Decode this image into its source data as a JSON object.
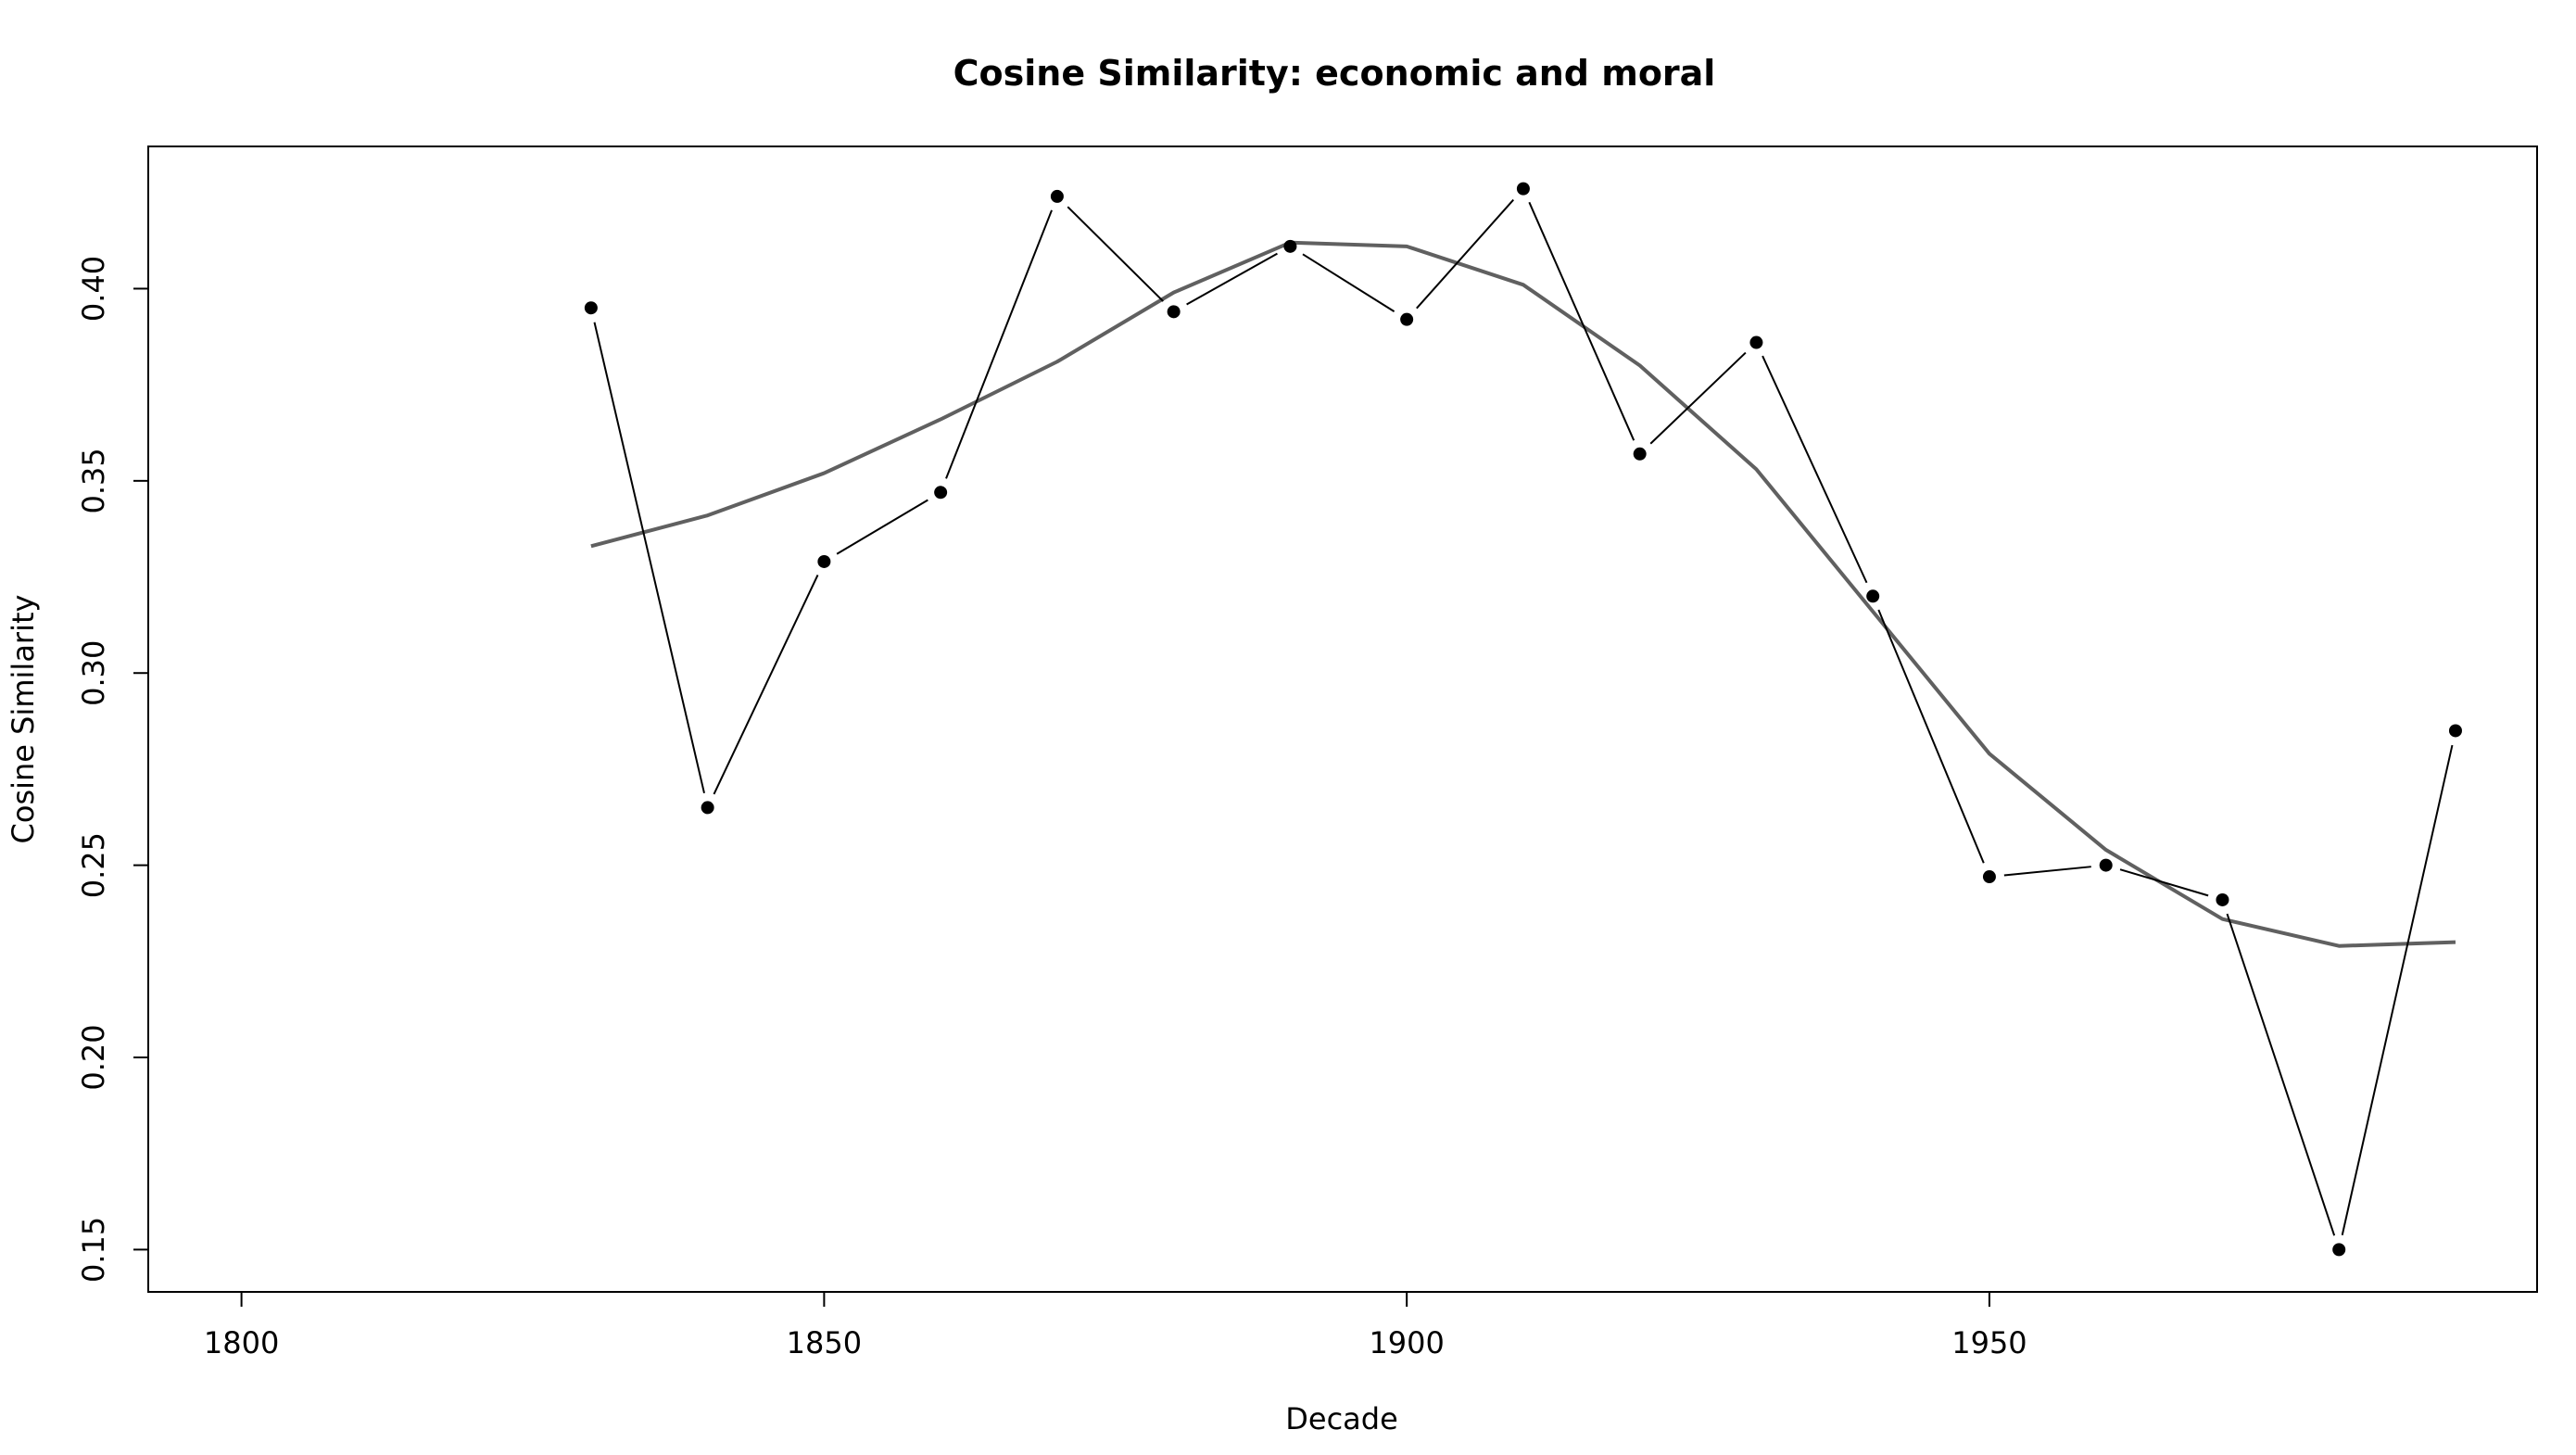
{
  "chart_data": {
    "type": "line",
    "title": "Cosine Similarity: economic and moral",
    "xlabel": "Decade",
    "ylabel": "Cosine Similarity",
    "xlim": [
      1792,
      1997
    ],
    "ylim": [
      0.139,
      0.437
    ],
    "x_ticks": [
      1800,
      1850,
      1900,
      1950
    ],
    "y_ticks": [
      0.15,
      0.2,
      0.25,
      0.3,
      0.35,
      0.4
    ],
    "y_tick_labels": [
      "0.15",
      "0.20",
      "0.25",
      "0.30",
      "0.35",
      "0.40"
    ],
    "grid": false,
    "series": [
      {
        "style": "points-and-lines",
        "color": "#000000",
        "x": [
          1830,
          1840,
          1850,
          1860,
          1870,
          1880,
          1890,
          1900,
          1910,
          1920,
          1930,
          1940,
          1950,
          1960,
          1970,
          1980,
          1990
        ],
        "values": [
          0.395,
          0.265,
          0.329,
          0.347,
          0.424,
          0.394,
          0.411,
          0.392,
          0.426,
          0.357,
          0.386,
          0.32,
          0.247,
          0.25,
          0.241,
          0.15,
          0.285
        ]
      },
      {
        "style": "smooth-line",
        "color": "#606060",
        "x": [
          1830,
          1840,
          1850,
          1860,
          1870,
          1880,
          1890,
          1900,
          1910,
          1920,
          1930,
          1940,
          1950,
          1960,
          1970,
          1980,
          1990
        ],
        "values": [
          0.333,
          0.341,
          0.352,
          0.366,
          0.381,
          0.399,
          0.412,
          0.411,
          0.401,
          0.38,
          0.353,
          0.316,
          0.279,
          0.254,
          0.236,
          0.229,
          0.23
        ]
      }
    ]
  }
}
